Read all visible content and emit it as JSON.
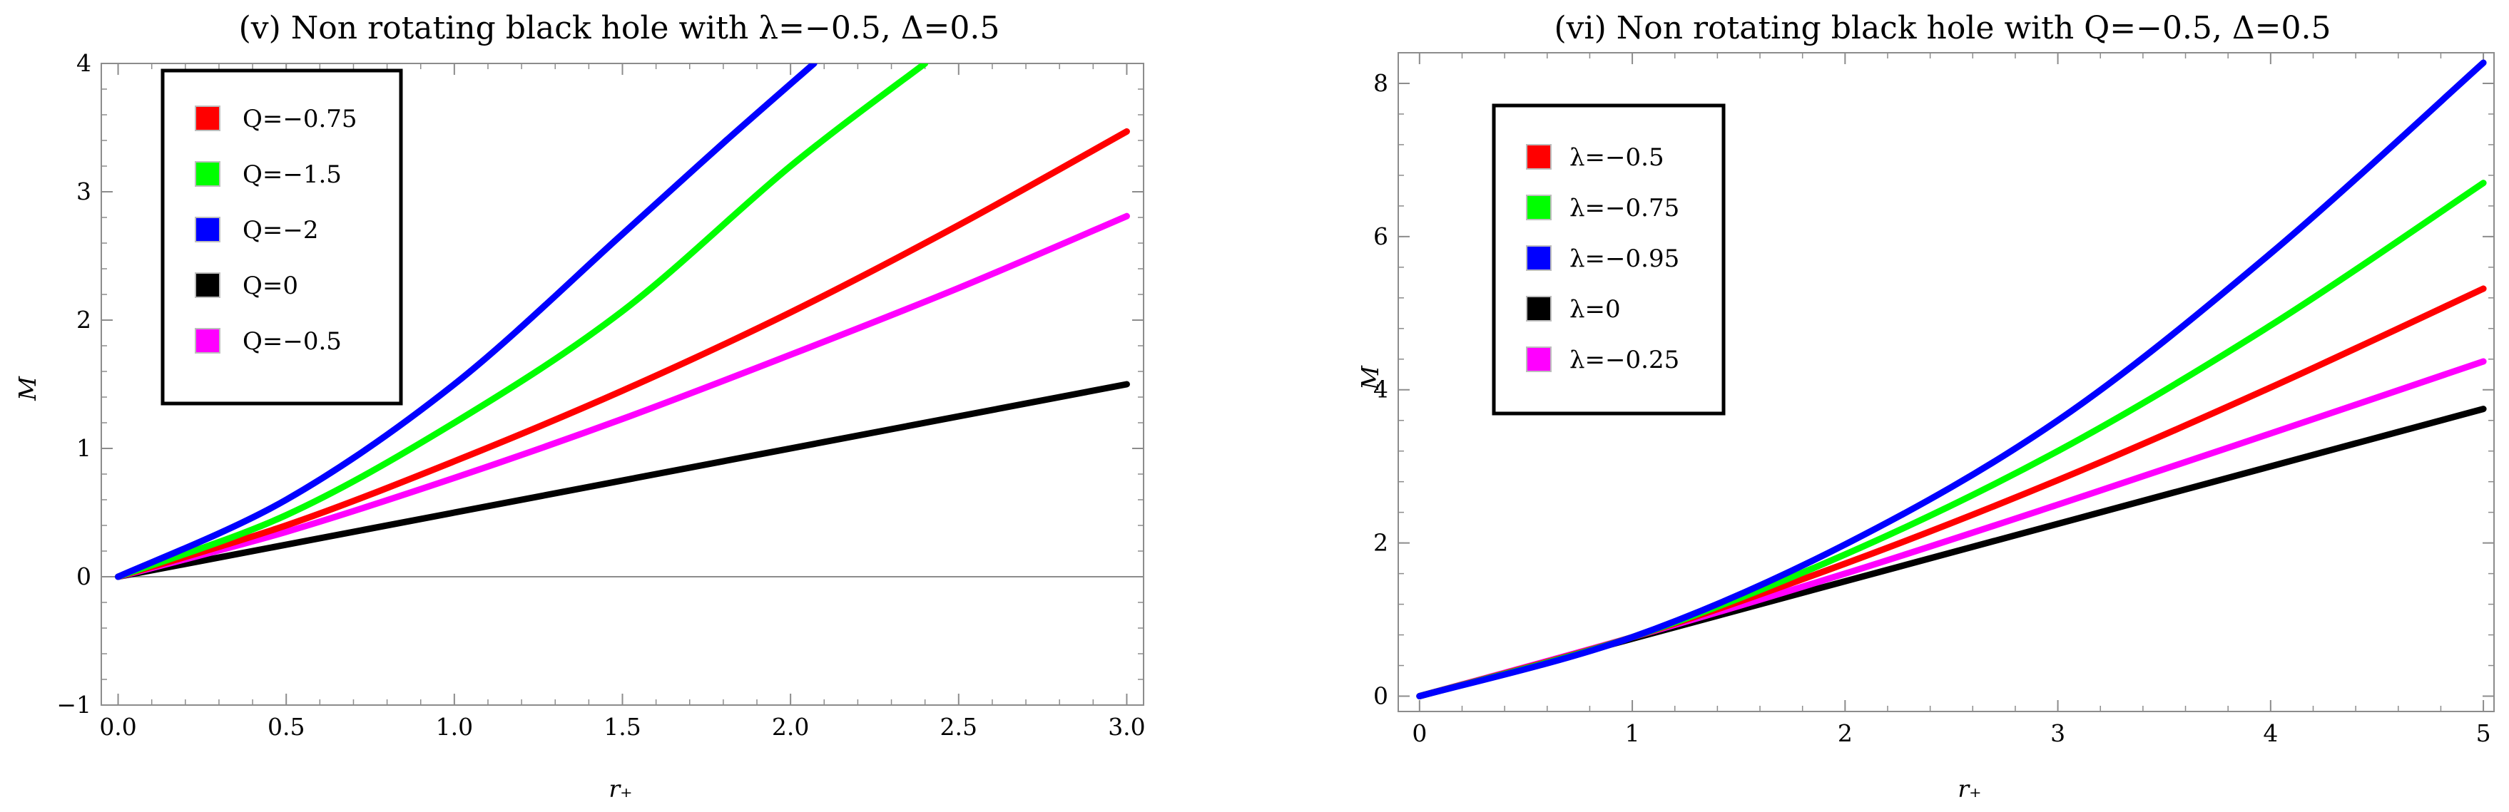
{
  "chart_data": [
    {
      "type": "line",
      "title": "(v) Non rotating black hole with λ=−0.5, Δ=0.5",
      "xlabel": "r₊",
      "ylabel": "M",
      "xlim": [
        -0.05,
        3.05
      ],
      "ylim": [
        -1,
        4
      ],
      "xticks": [
        0,
        0.5,
        1,
        1.5,
        2,
        2.5,
        3
      ],
      "xtick_labels": [
        "0.0",
        "0.5",
        "1.0",
        "1.5",
        "2.0",
        "2.5",
        "3.0"
      ],
      "yticks": [
        -1,
        0,
        1,
        2,
        3,
        4
      ],
      "ytick_labels": [
        "−1",
        "0",
        "1",
        "2",
        "3",
        "4"
      ],
      "zero_line": true,
      "legend_position": "top-left",
      "series": [
        {
          "name": "Q=−0.75",
          "color": "#ff0000",
          "x": [
            0,
            0.5,
            1.0,
            1.5,
            2.0,
            2.5,
            3.0
          ],
          "y": [
            0,
            0.4,
            0.9,
            1.45,
            2.06,
            2.74,
            3.47
          ]
        },
        {
          "name": "Q=−1.5",
          "color": "#00ff00",
          "x": [
            0,
            0.5,
            1.0,
            1.5,
            2.0,
            2.4
          ],
          "y": [
            0,
            0.48,
            1.2,
            2.07,
            3.2,
            4.0
          ]
        },
        {
          "name": "Q=−2",
          "color": "#0000ff",
          "x": [
            0,
            0.5,
            1.0,
            1.5,
            1.8,
            2.07
          ],
          "y": [
            0,
            0.6,
            1.5,
            2.67,
            3.38,
            4.0
          ]
        },
        {
          "name": "Q=0",
          "color": "#000000",
          "x": [
            0,
            3.0
          ],
          "y": [
            0,
            1.5
          ]
        },
        {
          "name": "Q=−0.5",
          "color": "#ff00ff",
          "x": [
            0,
            0.5,
            1.0,
            1.5,
            2.0,
            2.5,
            3.0
          ],
          "y": [
            0,
            0.35,
            0.77,
            1.23,
            1.73,
            2.25,
            2.81
          ]
        }
      ]
    },
    {
      "type": "line",
      "title": "(vi) Non rotating black hole with Q=−0.5, Δ=0.5",
      "xlabel": "r₊",
      "ylabel": "M",
      "xlim": [
        -0.1,
        5.05
      ],
      "ylim": [
        -0.2,
        8.4
      ],
      "xticks": [
        0,
        1,
        2,
        3,
        4,
        5
      ],
      "xtick_labels": [
        "0",
        "1",
        "2",
        "3",
        "4",
        "5"
      ],
      "yticks": [
        0,
        2,
        4,
        6,
        8
      ],
      "ytick_labels": [
        "0",
        "2",
        "4",
        "6",
        "8"
      ],
      "zero_line": false,
      "legend_position": "top-left",
      "series": [
        {
          "name": "λ=−0.5",
          "color": "#ff0000",
          "x": [
            0,
            1,
            2,
            3,
            4,
            5
          ],
          "y": [
            0,
            0.77,
            1.73,
            2.82,
            4.03,
            5.32
          ]
        },
        {
          "name": "λ=−0.75",
          "color": "#00ff00",
          "x": [
            0,
            1,
            2,
            3,
            4,
            5
          ],
          "y": [
            0,
            0.77,
            1.85,
            3.2,
            4.84,
            6.7
          ]
        },
        {
          "name": "λ=−0.95",
          "color": "#0000ff",
          "x": [
            0,
            1,
            2,
            3,
            4,
            5
          ],
          "y": [
            0,
            0.77,
            1.98,
            3.6,
            5.78,
            8.27
          ]
        },
        {
          "name": "λ=0",
          "color": "#000000",
          "x": [
            0,
            5
          ],
          "y": [
            0,
            3.75
          ]
        },
        {
          "name": "λ=−0.25",
          "color": "#ff00ff",
          "x": [
            0,
            1,
            2,
            3,
            4,
            5
          ],
          "y": [
            0,
            0.77,
            1.6,
            2.5,
            3.43,
            4.37
          ]
        }
      ]
    }
  ]
}
